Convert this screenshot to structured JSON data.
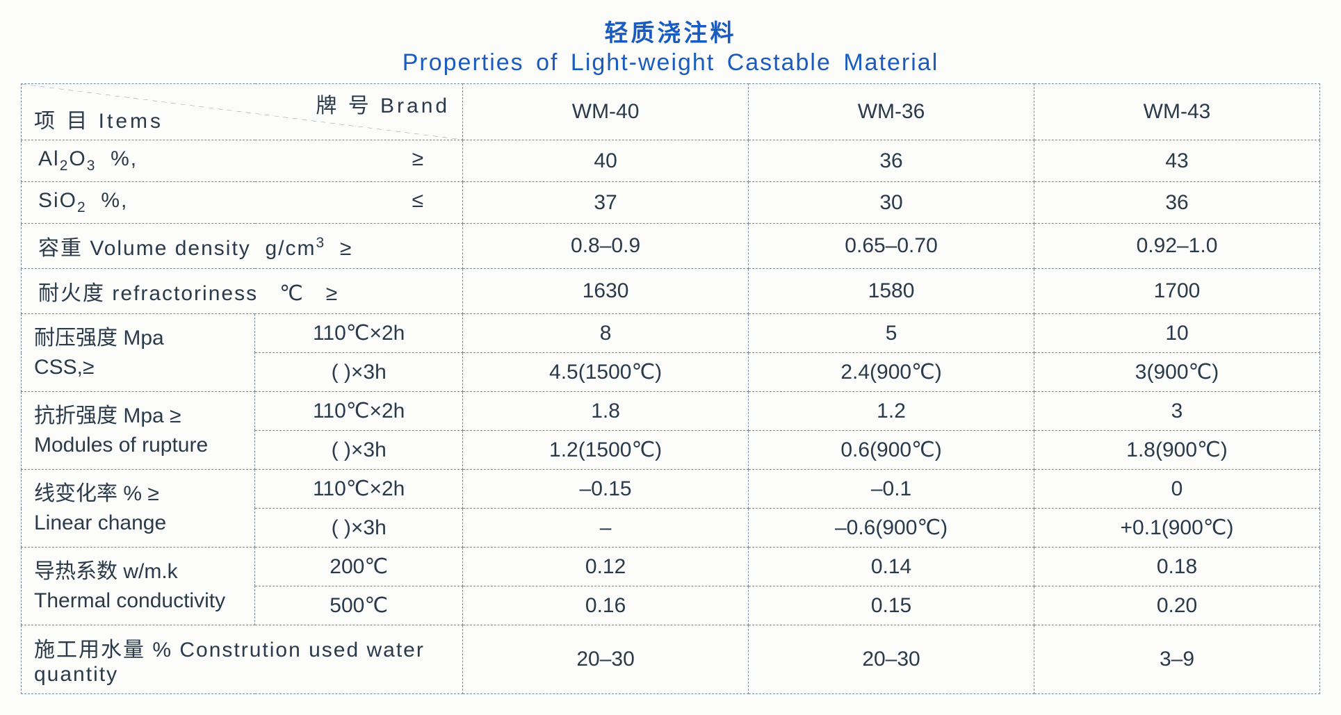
{
  "title": {
    "cn": "轻质浇注料",
    "en": "Properties of Light-weight Castable Material"
  },
  "header": {
    "items_label": "项 目 Items",
    "brand_label": "牌 号 Brand",
    "brands": [
      "WM-40",
      "WM-36",
      "WM-43"
    ]
  },
  "rows": {
    "al2o3": {
      "label_html": "Al<sub>2</sub>O<sub>3</sub>&nbsp;&nbsp;%,",
      "sym": "≥",
      "v": [
        "40",
        "36",
        "43"
      ]
    },
    "sio2": {
      "label_html": "SiO<sub>2</sub>&nbsp;&nbsp;%,",
      "sym": "≤",
      "v": [
        "37",
        "30",
        "36"
      ]
    },
    "density": {
      "label_html": "容重 Volume density&nbsp;&nbsp;g/cm<sup>3</sup>&nbsp;&nbsp;≥",
      "v": [
        "0.8–0.9",
        "0.65–0.70",
        "0.92–1.0"
      ]
    },
    "refract": {
      "label_html": "耐火度 refractoriness&nbsp;&nbsp;&nbsp;℃&nbsp;&nbsp;&nbsp;≥",
      "v": [
        "1630",
        "1580",
        "1700"
      ]
    },
    "css": {
      "group_label_l1": "耐压强度  Mpa",
      "group_label_l2": "CSS,≥",
      "cond1": "110℃×2h",
      "cond2": "(   )×3h",
      "v1": [
        "8",
        "5",
        "10"
      ],
      "v2": [
        "4.5(1500℃)",
        "2.4(900℃)",
        "3(900℃)"
      ]
    },
    "mor": {
      "group_label_l1": "抗折强度 Mpa  ≥",
      "group_label_l2": "Modules of rupture",
      "cond1": "110℃×2h",
      "cond2": "(   )×3h",
      "v1": [
        "1.8",
        "1.2",
        "3"
      ],
      "v2": [
        "1.2(1500℃)",
        "0.6(900℃)",
        "1.8(900℃)"
      ]
    },
    "linear": {
      "group_label_l1": "线变化率  %  ≥",
      "group_label_l2": "Linear change",
      "cond1": "110℃×2h",
      "cond2": "(   )×3h",
      "v1": [
        "–0.15",
        "–0.1",
        "0"
      ],
      "v2": [
        "–",
        "–0.6(900℃)",
        "+0.1(900℃)"
      ]
    },
    "thermal": {
      "group_label_l1": "导热系数  w/m.k",
      "group_label_l2": "Thermal conductivity",
      "cond1": "200℃",
      "cond2": "500℃",
      "v1": [
        "0.12",
        "0.14",
        "0.18"
      ],
      "v2": [
        "0.16",
        "0.15",
        "0.20"
      ]
    },
    "water": {
      "label": "施工用水量 % Constrution used water quantity",
      "v": [
        "20–30",
        "20–30",
        "3–9"
      ]
    }
  },
  "style": {
    "title_color": "#1a5bbf",
    "text_color": "#2a3a4a",
    "border_color": "#7a8a9a",
    "background": "#fcfcfa",
    "title_fontsize_pt": 26,
    "cell_fontsize_pt": 22,
    "border_style": "dashed",
    "table_type": "table"
  }
}
